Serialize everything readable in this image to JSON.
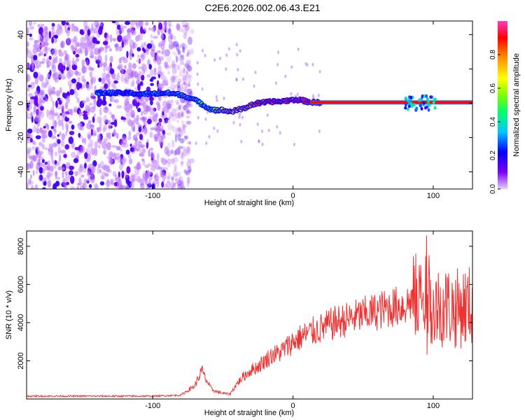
{
  "title": "C2E6.2026.002.06.43.E21",
  "chart_data": [
    {
      "type": "heatmap",
      "xlabel": "Height of straight line (km)",
      "ylabel": "Frequency (Hz)",
      "xlim": [
        -190,
        128
      ],
      "ylim": [
        -50,
        48
      ],
      "x_ticks": [
        -100,
        0,
        100
      ],
      "x_tick_labels": [
        "-100",
        "0",
        "100"
      ],
      "y_ticks": [
        -40,
        -20,
        0,
        20,
        40
      ],
      "y_tick_labels": [
        "-40",
        "-20",
        "0",
        "20",
        "40"
      ],
      "grid": false,
      "colorbar": {
        "label": "Normalized spectral amplitude",
        "range": [
          0,
          1
        ],
        "ticks": [
          0,
          0.2,
          0.4,
          0.6,
          0.8
        ],
        "tick_labels": [
          "0.0",
          "0.2",
          "0.4",
          "0.6",
          "0.8"
        ],
        "colors": [
          "#e8d0ff",
          "#7d00f5",
          "#0000ff",
          "#00c8ff",
          "#00ff66",
          "#7fff00",
          "#ffff00",
          "#ff9000",
          "#ff0000",
          "#ff3cc8"
        ]
      },
      "noise_region_x": [
        -190,
        -80
      ],
      "ridge": {
        "x": [
          -140,
          -130,
          -120,
          -110,
          -100,
          -90,
          -80,
          -70,
          -60,
          -55,
          -50,
          -45,
          -40,
          -35,
          -30,
          -25,
          -20,
          -15,
          -10,
          -5,
          0,
          5,
          10,
          15,
          20,
          40,
          60,
          80,
          90,
          100,
          110,
          128
        ],
        "freq": [
          6,
          6,
          6,
          5.5,
          5.5,
          6,
          5,
          2,
          -3,
          -4,
          -4,
          -5,
          -4,
          -3,
          -1,
          0,
          0.5,
          1,
          1,
          1.5,
          2,
          2,
          1,
          0.5,
          0.5,
          0.5,
          0.5,
          0.5,
          0.5,
          0.5,
          0.5,
          0.5
        ],
        "amplitude": [
          0.3,
          0.3,
          0.25,
          0.3,
          0.3,
          0.35,
          0.35,
          0.4,
          0.4,
          0.5,
          0.6,
          0.7,
          0.75,
          0.75,
          0.8,
          0.85,
          0.9,
          0.9,
          0.9,
          0.9,
          0.95,
          0.9,
          0.9,
          0.9,
          0.9,
          0.9,
          0.9,
          0.9,
          0.9,
          0.9,
          0.9,
          0.9
        ]
      }
    },
    {
      "type": "line",
      "xlabel": "Height of straight line (km)",
      "ylabel": "SNR (10 * v/v)",
      "xlim": [
        -190,
        128
      ],
      "ylim": [
        0,
        8800
      ],
      "x_ticks": [
        -100,
        0,
        100
      ],
      "x_tick_labels": [
        "-100",
        "0",
        "100"
      ],
      "y_ticks": [
        2000,
        4000,
        6000,
        8000
      ],
      "y_tick_labels": [
        "2000",
        "4000",
        "6000",
        "8000"
      ],
      "grid": false,
      "series": [
        {
          "color": "#ee3333",
          "envelope": {
            "x": [
              -190,
              -150,
              -100,
              -80,
              -70,
              -65,
              -62,
              -58,
              -55,
              -50,
              -45,
              -40,
              -35,
              -30,
              -25,
              -20,
              -15,
              -10,
              -5,
              0,
              10,
              20,
              30,
              40,
              50,
              60,
              70,
              80,
              85,
              90,
              93,
              95,
              97,
              100,
              105,
              110,
              115,
              120,
              128
            ],
            "y": [
              150,
              150,
              150,
              200,
              700,
              1500,
              1000,
              500,
              400,
              300,
              250,
              800,
              1200,
              1500,
              1700,
              2000,
              2300,
              2400,
              2700,
              3000,
              3400,
              3700,
              4000,
              4200,
              4400,
              4600,
              4800,
              4900,
              5200,
              5400,
              5200,
              3000,
              5600,
              5000,
              4800,
              4900,
              4700,
              4800,
              4900
            ]
          }
        }
      ]
    }
  ]
}
